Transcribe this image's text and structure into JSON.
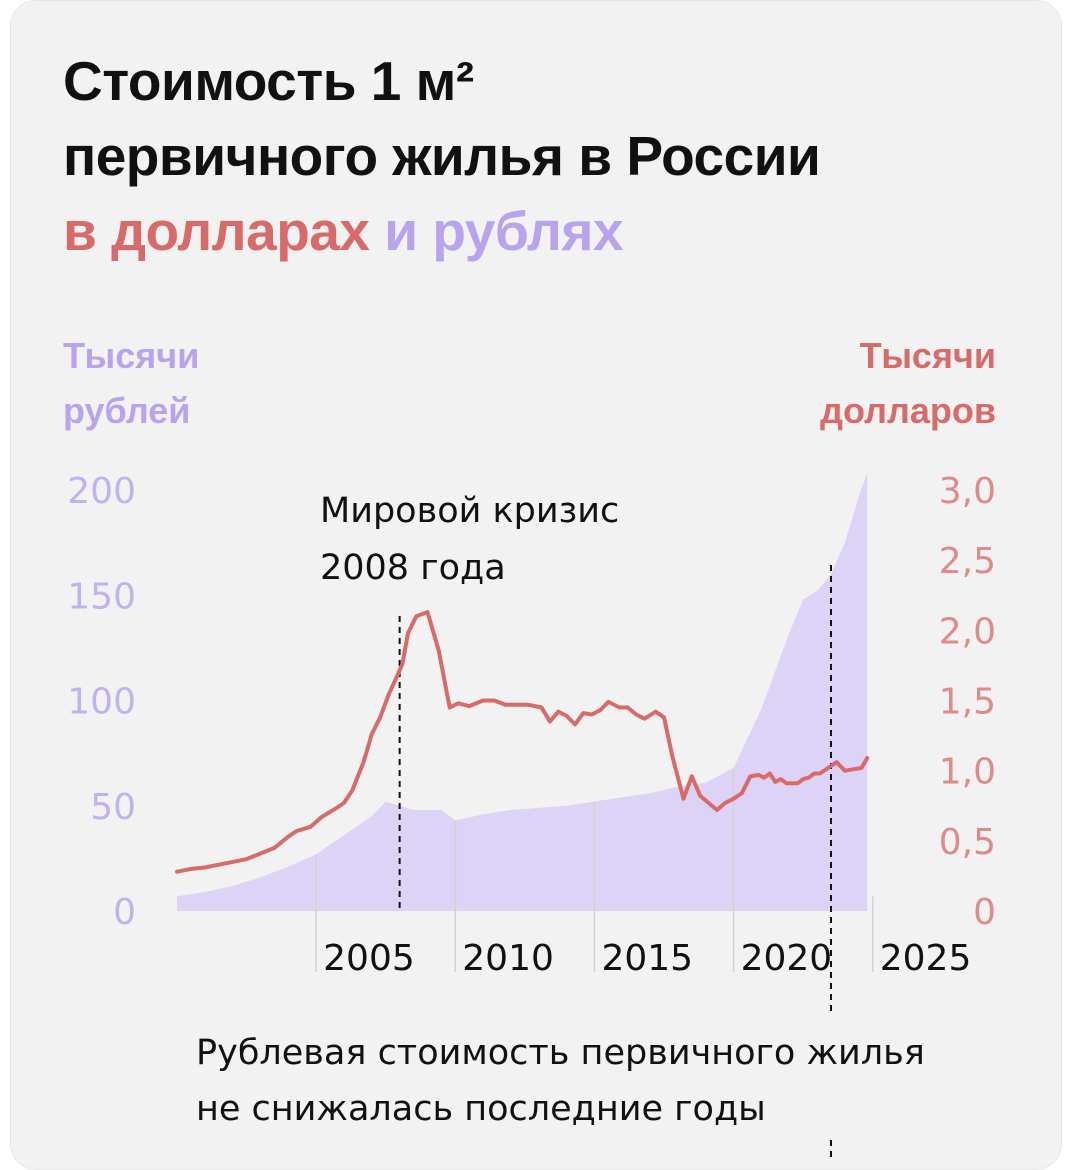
{
  "title": {
    "line1": "Стоимость 1 м²",
    "line2": "первичного жилья в России",
    "line3_part1": "в долларах",
    "line3_part2": " и ",
    "line3_part3": "рублях"
  },
  "colors": {
    "usd": "#d96a6a",
    "rub": "#b9a2ee",
    "rub_area": "#ddd3f6"
  },
  "chart_data": {
    "type": "line",
    "title": "Стоимость 1 м² первичного жилья в России в долларах и рублях",
    "left_axis": {
      "label_line1": "Тысячи",
      "label_line2": "рублей",
      "ticks": [
        "200",
        "150",
        "100",
        "50",
        "0"
      ],
      "tick_values": [
        200,
        150,
        100,
        50,
        0
      ],
      "range": [
        0,
        200
      ]
    },
    "right_axis": {
      "label_line1": "Тысячи",
      "label_line2": "долларов",
      "ticks": [
        "3,0",
        "2,5",
        "2,0",
        "1,5",
        "1,0",
        "0,5",
        "0"
      ],
      "tick_values": [
        3.0,
        2.5,
        2.0,
        1.5,
        1.0,
        0.5,
        0
      ],
      "range": [
        0,
        3.0
      ]
    },
    "x_axis": {
      "ticks": [
        "2005",
        "2010",
        "2015",
        "2020",
        "2025"
      ],
      "tick_values": [
        2005,
        2010,
        2015,
        2020,
        2025
      ],
      "range": [
        2000,
        2025.8
      ]
    },
    "grid": false,
    "series": [
      {
        "axis": "left",
        "style": "area",
        "x": [
          2000,
          2001,
          2002,
          2003,
          2004,
          2005,
          2006,
          2007,
          2007.5,
          2008.5,
          2009.5,
          2010,
          2011,
          2012,
          2013,
          2014,
          2015,
          2016,
          2017,
          2018,
          2019,
          2020,
          2021,
          2022,
          2022.5,
          2023,
          2023.5,
          2024,
          2024.5,
          2024.8
        ],
        "values": [
          7,
          9,
          12,
          16,
          21,
          27,
          36,
          45,
          52,
          48,
          48,
          43,
          46,
          48,
          49,
          50,
          52,
          54,
          56,
          59,
          61,
          68,
          96,
          132,
          148,
          152,
          160,
          175,
          197,
          208
        ]
      },
      {
        "axis": "right",
        "style": "line",
        "x": [
          2000,
          2000.5,
          2001,
          2001.5,
          2002,
          2002.5,
          2003,
          2003.5,
          2004,
          2004.3,
          2004.8,
          2005.2,
          2005.7,
          2006,
          2006.3,
          2006.7,
          2007,
          2007.3,
          2007.6,
          2007.9,
          2008.1,
          2008.3,
          2008.6,
          2009,
          2009.4,
          2009.8,
          2010.1,
          2010.5,
          2011,
          2011.4,
          2011.8,
          2012.2,
          2012.6,
          2013.1,
          2013.4,
          2013.7,
          2014,
          2014.3,
          2014.6,
          2014.9,
          2015.2,
          2015.5,
          2015.9,
          2016.2,
          2016.5,
          2016.8,
          2017.2,
          2017.5,
          2017.8,
          2018.2,
          2018.5,
          2018.8,
          2019.1,
          2019.4,
          2019.7,
          2020,
          2020.3,
          2020.6,
          2020.9,
          2021.1,
          2021.3,
          2021.5,
          2021.7,
          2021.9,
          2022.1,
          2022.3,
          2022.5,
          2022.7,
          2022.9,
          2023.1,
          2023.4,
          2023.7,
          2024,
          2024.3,
          2024.6,
          2024.8
        ],
        "values": [
          0.28,
          0.3,
          0.31,
          0.33,
          0.35,
          0.37,
          0.41,
          0.45,
          0.53,
          0.57,
          0.6,
          0.67,
          0.73,
          0.77,
          0.86,
          1.06,
          1.26,
          1.38,
          1.54,
          1.67,
          1.76,
          1.98,
          2.1,
          2.13,
          1.86,
          1.45,
          1.48,
          1.46,
          1.5,
          1.5,
          1.47,
          1.47,
          1.47,
          1.45,
          1.35,
          1.42,
          1.39,
          1.33,
          1.41,
          1.4,
          1.43,
          1.49,
          1.45,
          1.45,
          1.4,
          1.37,
          1.42,
          1.38,
          1.1,
          0.8,
          0.96,
          0.82,
          0.77,
          0.72,
          0.77,
          0.8,
          0.84,
          0.96,
          0.97,
          0.95,
          0.98,
          0.92,
          0.94,
          0.91,
          0.91,
          0.91,
          0.94,
          0.95,
          0.98,
          0.98,
          1.02,
          1.06,
          1.0,
          1.01,
          1.02,
          1.09
        ]
      }
    ],
    "annotations": [
      {
        "line1": "Мировой кризис",
        "line2": "2008 года",
        "x": 2008.0
      },
      {
        "line1": "Рублевая стоимость первичного жилья",
        "line2": "не снижалась последние годы",
        "x": 2023.5
      }
    ]
  }
}
